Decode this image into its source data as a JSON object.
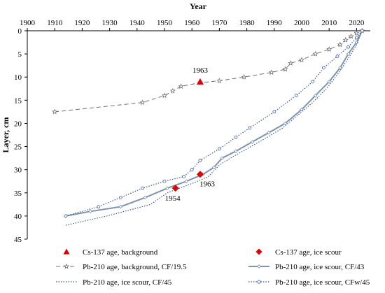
{
  "chart_data": {
    "type": "line",
    "xlabel": "Year",
    "ylabel": "Layer, cm",
    "xlim": [
      1900,
      2025
    ],
    "ylim": [
      0,
      45
    ],
    "y_reversed": true,
    "x_axis_position": "top",
    "x_ticks": [
      1900,
      1910,
      1920,
      1930,
      1940,
      1950,
      1960,
      1970,
      1980,
      1990,
      2000,
      2010,
      2020
    ],
    "y_ticks": [
      0,
      5,
      10,
      15,
      20,
      25,
      30,
      35,
      40,
      45
    ],
    "grid": false,
    "legend_position": "bottom",
    "series": [
      {
        "name": "Cs-137 age, background",
        "style": "marker-triangle",
        "color": "#e00000",
        "points": [
          [
            1963,
            11
          ]
        ]
      },
      {
        "name": "Cs-137 age, ice scour",
        "style": "marker-diamond",
        "color": "#e00000",
        "points": [
          [
            1954,
            34
          ],
          [
            1963,
            31
          ]
        ]
      },
      {
        "name": "Pb-210 age, background, CF/19.5",
        "style": "dashed-star",
        "color": "#707070",
        "points": [
          [
            1910,
            17.5
          ],
          [
            1942,
            15.5
          ],
          [
            1950,
            14
          ],
          [
            1953,
            13
          ],
          [
            1956,
            12
          ],
          [
            1963,
            11.2
          ],
          [
            1970,
            10.8
          ],
          [
            1979,
            10
          ],
          [
            1989,
            9
          ],
          [
            1994,
            8.3
          ],
          [
            1996,
            7
          ],
          [
            2000,
            6.3
          ],
          [
            2005,
            5
          ],
          [
            2010,
            4
          ],
          [
            2014,
            3
          ],
          [
            2016,
            2
          ],
          [
            2018,
            1.2
          ],
          [
            2020,
            0.5
          ],
          [
            2022,
            0
          ]
        ]
      },
      {
        "name": "Pb-210 age, ice scour, CF/43",
        "style": "solid",
        "color": "#7f93ad",
        "points": [
          [
            1914,
            40
          ],
          [
            1923,
            39
          ],
          [
            1934,
            38
          ],
          [
            1943,
            36
          ],
          [
            1951,
            34
          ],
          [
            1958,
            32.5
          ],
          [
            1964,
            31
          ],
          [
            1968,
            29.5
          ],
          [
            1971,
            27.5
          ],
          [
            1976,
            26
          ],
          [
            1982,
            24
          ],
          [
            1988,
            22
          ],
          [
            1994,
            20
          ],
          [
            2000,
            17
          ],
          [
            2005,
            14
          ],
          [
            2010,
            11
          ],
          [
            2014,
            8
          ],
          [
            2017,
            5
          ],
          [
            2020,
            2.5
          ],
          [
            2022,
            0
          ]
        ]
      },
      {
        "name": "Pb-210 age, ice scour, CF/45",
        "style": "dotted-line",
        "color": "#3a5aa6",
        "points": [
          [
            1914,
            42
          ],
          [
            1929,
            40
          ],
          [
            1945,
            37.5
          ],
          [
            1951,
            35
          ],
          [
            1960,
            33
          ],
          [
            1966,
            31.5
          ],
          [
            1970,
            29
          ],
          [
            1974,
            27.5
          ],
          [
            1980,
            25.5
          ],
          [
            1986,
            23.5
          ],
          [
            1993,
            21
          ],
          [
            1998,
            18.5
          ],
          [
            2004,
            15.5
          ],
          [
            2009,
            12.5
          ],
          [
            2013,
            9.5
          ],
          [
            2017,
            6
          ],
          [
            2020,
            3
          ],
          [
            2022,
            0
          ]
        ]
      },
      {
        "name": "Pb-210 age, ice scour, CFw/45",
        "style": "dotted-marker",
        "color": "#3a5aa6",
        "points": [
          [
            1914,
            40
          ],
          [
            1926,
            38
          ],
          [
            1934,
            36
          ],
          [
            1942,
            34
          ],
          [
            1950,
            32.5
          ],
          [
            1957,
            31.5
          ],
          [
            1960,
            30
          ],
          [
            1963,
            28
          ],
          [
            1970,
            25.5
          ],
          [
            1976,
            23
          ],
          [
            1981,
            21
          ],
          [
            1990,
            17.5
          ],
          [
            1998,
            14
          ],
          [
            2004,
            11
          ],
          [
            2008,
            8
          ],
          [
            2013,
            5.5
          ],
          [
            2017,
            3.5
          ],
          [
            2020,
            1.5
          ],
          [
            2022,
            0
          ]
        ]
      }
    ],
    "annotations": [
      {
        "text": "1963",
        "x": 1963,
        "y": 11
      },
      {
        "text": "1963",
        "x": 1963,
        "y": 31
      },
      {
        "text": "1954",
        "x": 1954,
        "y": 34
      }
    ]
  }
}
